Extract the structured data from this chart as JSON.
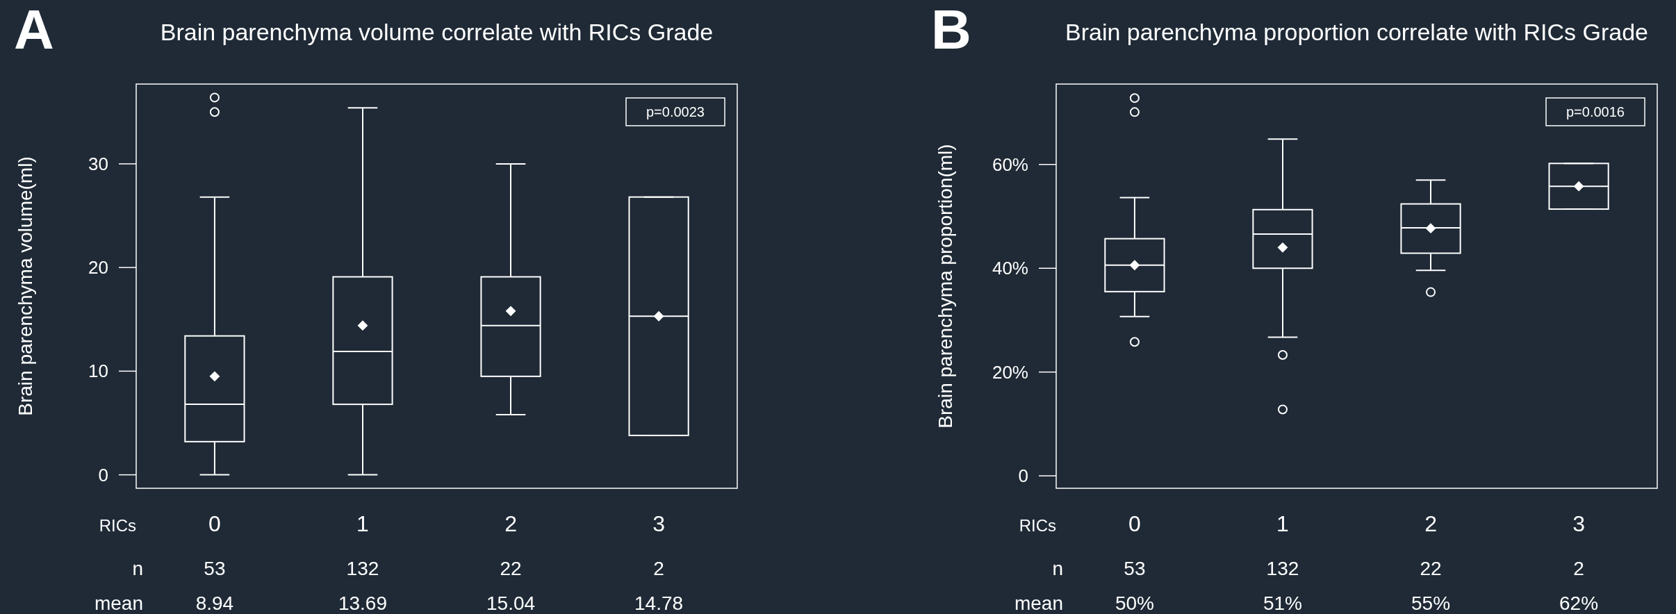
{
  "chart_data": [
    {
      "type": "box",
      "title": "Brain parenchyma volume correlate with RICs Grade",
      "ylabel": "Brain parenchyma volume(ml)",
      "xlabel": "RICs",
      "categories": [
        "0",
        "1",
        "2",
        "3"
      ],
      "ylim": [
        -1.3,
        37.7
      ],
      "yticks": [
        0,
        10,
        20,
        30
      ],
      "grid": false,
      "marker": "diamond",
      "annotations": [
        "A",
        "p=0.0023",
        "n",
        "53",
        "132",
        "22",
        "2",
        "mean",
        "8.94",
        "13.69",
        "15.04",
        "14.78"
      ],
      "series": [
        {
          "color": "#ffffff",
          "boxes": [
            {
              "low": 0,
              "q1": 3.2,
              "median": 6.8,
              "q3": 13.4,
              "high": 26.8,
              "mean": 9.5,
              "outliers": [
                36.4,
                35.0
              ]
            },
            {
              "low": 0,
              "q1": 6.8,
              "median": 11.9,
              "q3": 19.1,
              "high": 35.4,
              "mean": 14.4
            },
            {
              "low": 5.8,
              "q1": 9.5,
              "median": 14.4,
              "q3": 19.1,
              "high": 30,
              "mean": 15.8
            },
            {
              "low": 3.8,
              "q1": 3.8,
              "median": 15.3,
              "q3": 26.8,
              "high": 26.8,
              "mean": 15.3
            }
          ]
        }
      ]
    },
    {
      "type": "box",
      "title": "Brain parenchyma proportion correlate with RICs Grade",
      "ylabel": "Brain parenchyma proportion(ml)",
      "xlabel": "RICs",
      "categories": [
        "0",
        "1",
        "2",
        "3"
      ],
      "ylim": [
        -2.4,
        75.5
      ],
      "yticks": [
        0,
        {
          "value": 20,
          "label": "20%"
        },
        {
          "value": 40,
          "label": "40%"
        },
        {
          "value": 60,
          "label": "60%"
        }
      ],
      "grid": false,
      "marker": "diamond",
      "annotations": [
        "B",
        "p=0.0016",
        "n",
        "53",
        "132",
        "22",
        "2",
        "mean",
        "50%",
        "51%",
        "55%",
        "62%"
      ],
      "series": [
        {
          "color": "#ffffff",
          "boxes": [
            {
              "low": 30.7,
              "q1": 35.5,
              "median": 40.6,
              "q3": 45.7,
              "high": 53.6,
              "mean": 40.6,
              "outliers": [
                72.8,
                70.1,
                25.8
              ]
            },
            {
              "low": 26.7,
              "q1": 40.0,
              "median": 46.6,
              "q3": 51.3,
              "high": 64.9,
              "mean": 44.0,
              "outliers": [
                23.3,
                12.8
              ]
            },
            {
              "low": 39.6,
              "q1": 42.9,
              "median": 47.8,
              "q3": 52.4,
              "high": 57.0,
              "mean": 47.7,
              "outliers": [
                35.4
              ]
            },
            {
              "low": 51.4,
              "q1": 51.4,
              "median": 55.8,
              "q3": 60.2,
              "high": 60.2,
              "mean": 55.8
            }
          ]
        }
      ]
    }
  ]
}
